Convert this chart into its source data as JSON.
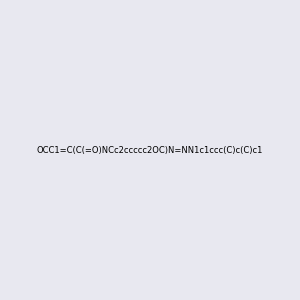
{
  "smiles": "OCC1=C(C(=O)NCc2ccccc2OC)N=NN1c1ccc(C)c(C)c1",
  "title": "",
  "bg_color": "#e8e8f0",
  "img_size": [
    300,
    300
  ],
  "atom_colors": {
    "N": [
      0,
      0,
      255
    ],
    "O": [
      255,
      0,
      0
    ],
    "C": [
      0,
      0,
      0
    ]
  }
}
